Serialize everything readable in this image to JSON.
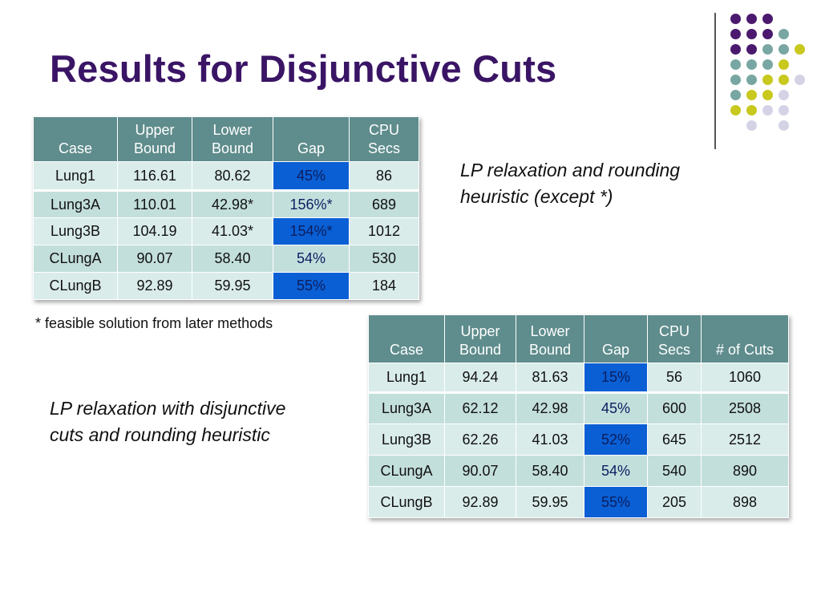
{
  "title": "Results for Disjunctive Cuts",
  "colors": {
    "title": "#3a1465",
    "header": "#5f8c8c",
    "gap_cell": "#0a5fd4",
    "dot_purple": "#4b1a6e",
    "dot_teal": "#78a6a3",
    "dot_yellow": "#c8c81e",
    "dot_lavender": "#d4d3e6"
  },
  "table1": {
    "headers": [
      [
        "",
        "Case"
      ],
      [
        "Upper",
        "Bound"
      ],
      [
        "Lower",
        "Bound"
      ],
      [
        "",
        "Gap"
      ],
      [
        "CPU",
        "Secs"
      ]
    ],
    "rows": [
      [
        "Lung1",
        "116.61",
        "80.62",
        "45%",
        "86"
      ],
      [
        "Lung3A",
        "110.01",
        "42.98*",
        "156%*",
        "689"
      ],
      [
        "Lung3B",
        "104.19",
        "41.03*",
        "154%*",
        "1012"
      ],
      [
        "CLungA",
        "90.07",
        "58.40",
        "54%",
        "530"
      ],
      [
        "CLungB",
        "92.89",
        "59.95",
        "55%",
        "184"
      ]
    ]
  },
  "footnote": "* feasible solution from later methods",
  "note1": [
    "LP relaxation and rounding",
    "heuristic (except *)"
  ],
  "note2": [
    "LP relaxation with disjunctive",
    "cuts and rounding heuristic"
  ],
  "table2": {
    "headers": [
      [
        "",
        "Case"
      ],
      [
        "Upper",
        "Bound"
      ],
      [
        "Lower",
        "Bound"
      ],
      [
        "",
        "Gap"
      ],
      [
        "CPU",
        "Secs"
      ],
      [
        "",
        "# of Cuts"
      ]
    ],
    "rows": [
      [
        "Lung1",
        "94.24",
        "81.63",
        "15%",
        "56",
        "1060"
      ],
      [
        "Lung3A",
        "62.12",
        "42.98",
        "45%",
        "600",
        "2508"
      ],
      [
        "Lung3B",
        "62.26",
        "41.03",
        "52%",
        "645",
        "2512"
      ],
      [
        "CLungA",
        "90.07",
        "58.40",
        "54%",
        "540",
        "890"
      ],
      [
        "CLungB",
        "92.89",
        "59.95",
        "55%",
        "205",
        "898"
      ]
    ]
  }
}
